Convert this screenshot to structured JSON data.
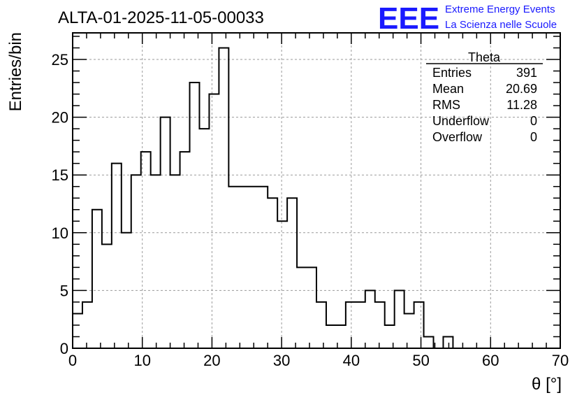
{
  "chart_data": {
    "type": "bar",
    "title": "ALTA-01-2025-11-05-00033",
    "xlabel": "θ [°]",
    "ylabel": "Entries/bin",
    "xlim": [
      0,
      70
    ],
    "ylim": [
      0,
      27.3
    ],
    "bin_width": 1.4,
    "x_ticks": [
      0,
      10,
      20,
      30,
      40,
      50,
      60,
      70
    ],
    "y_ticks": [
      0,
      5,
      10,
      15,
      20,
      25
    ],
    "grid": true,
    "values": [
      3,
      4,
      12,
      9,
      16,
      10,
      15,
      17,
      15,
      20,
      15,
      17,
      23,
      19,
      22,
      26,
      14,
      14,
      14,
      14,
      13,
      11,
      13,
      7,
      7,
      4,
      2,
      2,
      4,
      4,
      5,
      4,
      2,
      5,
      3,
      4,
      1,
      0,
      1,
      0,
      0,
      0,
      0,
      0,
      0,
      0,
      0,
      0,
      0,
      0
    ],
    "stats_box": {
      "title": "Theta",
      "rows": [
        {
          "label": "Entries",
          "value": "391"
        },
        {
          "label": "Mean",
          "value": "20.69"
        },
        {
          "label": "RMS",
          "value": "11.28"
        },
        {
          "label": "Underflow",
          "value": "0"
        },
        {
          "label": "Overflow",
          "value": "0"
        }
      ]
    }
  },
  "logo": {
    "mark": "EEE",
    "line1": "Extreme Energy Events",
    "line2": "La Scienza nelle Scuole",
    "color": "#1a1aff"
  }
}
